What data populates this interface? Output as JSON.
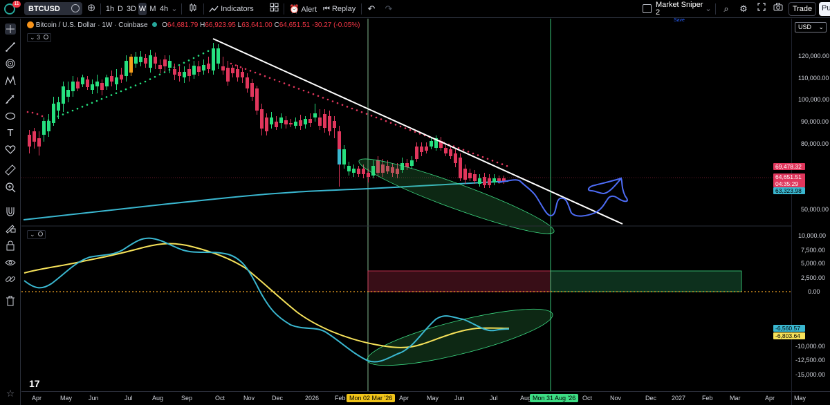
{
  "toolbar": {
    "badge_count": "11",
    "symbol": "BTCUSD",
    "timeframes": [
      "1h",
      "D",
      "3D",
      "W",
      "M",
      "4h"
    ],
    "active_timeframe": "W",
    "indicators_label": "Indicators",
    "alert_label": "Alert",
    "replay_label": "Replay",
    "layout_name": "Market Sniper 2",
    "layout_status": "Save",
    "trade_label": "Trade",
    "publish_label": "Pu"
  },
  "legend": {
    "title": "Bitcoin / U.S. Dollar · 1W · Coinbase",
    "open_key": "O",
    "open": "64,681.79",
    "high_key": "H",
    "high": "66,923.95",
    "low_key": "L",
    "low": "63,641.00",
    "close_key": "C",
    "close": "64,651.51",
    "change": "-30.27 (-0.05%)",
    "indicator_count": "3"
  },
  "currency": "USD",
  "price_axis": [
    "120,000.00",
    "110,000.00",
    "100,000.00",
    "90,000.00",
    "80,000.00",
    "50,000.00"
  ],
  "price_tags": {
    "level": "69,478.32",
    "last": "64,651.51",
    "countdown": "04:35:29",
    "ma": "63,323.98"
  },
  "osc_axis": [
    "10,000.00",
    "7,500.00",
    "5,000.00",
    "2,500.00",
    "0.00",
    "-10,000.00",
    "-12,500.00",
    "-15,000.00"
  ],
  "osc_tags": {
    "a": "-6,560.57",
    "b": "-6,803.64"
  },
  "time_axis": [
    "Apr",
    "May",
    "Jun",
    "Jul",
    "Aug",
    "Sep",
    "Oct",
    "Nov",
    "Dec",
    "2026",
    "Feb",
    "Apr",
    "May",
    "Jun",
    "Jul",
    "Aug",
    "Oct",
    "Nov",
    "Dec",
    "2027",
    "Feb",
    "Mar",
    "Apr",
    "May"
  ],
  "time_highlights": {
    "left": "Mon 02 Mar '26",
    "right": "Mon 31 Aug '26"
  },
  "colors": {
    "up": "#26e07f",
    "down": "#e0365c",
    "ma": "#3ab7d0",
    "signal": "#f6e25a",
    "highlight_left": "#f0c419",
    "highlight_right": "#3ddc84"
  },
  "left_tools": [
    "crosshair-icon",
    "trendline-icon",
    "fib-icon",
    "pattern-icon",
    "brush-icon",
    "text-icon",
    "heart-icon",
    "ruler-icon",
    "zoom-icon",
    "magnet-icon",
    "lock-draw-icon",
    "lock-icon",
    "eye-icon",
    "link-icon",
    "trash-icon"
  ]
}
